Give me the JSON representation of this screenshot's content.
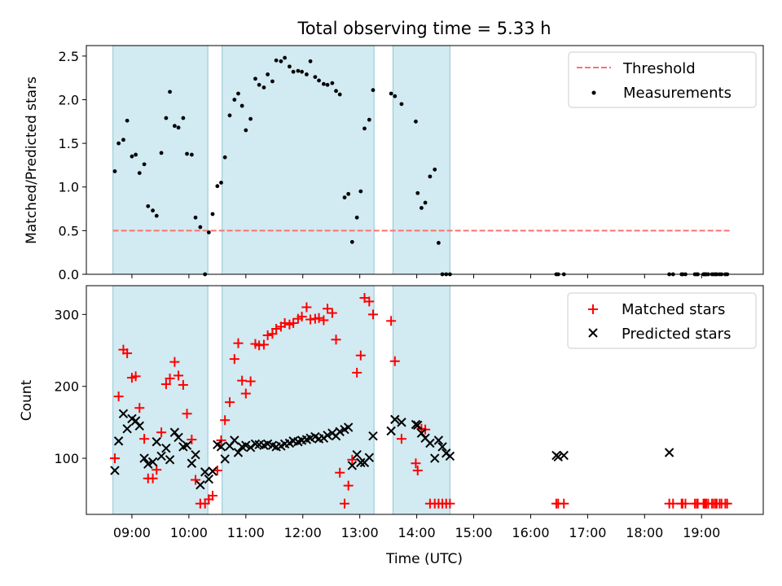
{
  "chart_data": {
    "title": "Total observing time = 5.33 h",
    "xlabel": "Time (UTC)",
    "xlim": [
      "08:12",
      "20:05"
    ],
    "x_ticks": [
      "09:00",
      "10:00",
      "11:00",
      "12:00",
      "13:00",
      "14:00",
      "15:00",
      "16:00",
      "17:00",
      "18:00",
      "19:00"
    ],
    "observing_windows": [
      [
        "08:40",
        "10:20"
      ],
      [
        "10:35",
        "13:15"
      ],
      [
        "13:35",
        "14:35"
      ]
    ],
    "window_color": "#add8e6",
    "panels": [
      {
        "type": "scatter",
        "ylabel": "Matched/Predicted stars",
        "ylim": [
          0,
          2.62
        ],
        "y_ticks": [
          "0.0",
          "0.5",
          "1.0",
          "1.5",
          "2.0",
          "2.5"
        ],
        "legend_position": "top-right",
        "series": [
          {
            "name": "Threshold",
            "kind": "hline",
            "y": 0.5,
            "x_range": [
              "08:40",
              "19:30"
            ],
            "color": "#ff7070",
            "style": "dashed"
          },
          {
            "name": "Measurements",
            "kind": "points",
            "marker": "dot",
            "color": "#000000",
            "x": [
              "08:42",
              "08:46",
              "08:51",
              "08:55",
              "09:00",
              "09:04",
              "09:08",
              "09:13",
              "09:17",
              "09:22",
              "09:26",
              "09:31",
              "09:36",
              "09:40",
              "09:45",
              "09:49",
              "09:54",
              "09:58",
              "10:03",
              "10:07",
              "10:12",
              "10:17",
              "10:21",
              "10:25",
              "10:30",
              "10:34",
              "10:38",
              "10:43",
              "10:48",
              "10:52",
              "10:56",
              "11:00",
              "11:05",
              "11:10",
              "11:14",
              "11:19",
              "11:23",
              "11:28",
              "11:32",
              "11:37",
              "11:41",
              "11:46",
              "11:50",
              "11:55",
              "11:59",
              "12:04",
              "12:08",
              "12:13",
              "12:17",
              "12:22",
              "12:26",
              "12:31",
              "12:35",
              "12:39",
              "12:44",
              "12:48",
              "12:52",
              "12:57",
              "13:01",
              "13:05",
              "13:10",
              "13:14",
              "13:33",
              "13:37",
              "13:44",
              "13:59",
              "14:01",
              "14:05",
              "14:09",
              "14:14",
              "14:19",
              "14:23",
              "14:27",
              "14:31",
              "14:35",
              "16:27",
              "16:29",
              "16:35",
              "18:26",
              "18:30",
              "18:39",
              "18:40",
              "18:43",
              "18:53",
              "18:55",
              "18:56",
              "19:02",
              "19:03",
              "19:04",
              "19:05",
              "19:07",
              "19:11",
              "19:13",
              "19:15",
              "19:16",
              "19:19",
              "19:21",
              "19:25",
              "19:27"
            ],
            "y": [
              1.18,
              1.5,
              1.54,
              1.76,
              1.35,
              1.37,
              1.16,
              1.26,
              0.78,
              0.73,
              0.67,
              1.39,
              1.79,
              2.09,
              1.7,
              1.68,
              1.79,
              1.38,
              1.37,
              0.65,
              0.54,
              0.0,
              0.48,
              0.69,
              1.01,
              1.05,
              1.34,
              1.82,
              2.0,
              2.07,
              1.93,
              1.65,
              1.78,
              2.24,
              2.17,
              2.14,
              2.29,
              2.21,
              2.45,
              2.44,
              2.48,
              2.38,
              2.32,
              2.33,
              2.32,
              2.29,
              2.44,
              2.26,
              2.22,
              2.18,
              2.17,
              2.19,
              2.1,
              2.06,
              0.88,
              0.92,
              0.37,
              0.65,
              0.95,
              1.67,
              1.77,
              2.11,
              2.07,
              2.04,
              1.95,
              1.75,
              0.93,
              0.76,
              0.82,
              1.12,
              1.2,
              0.36,
              0.0,
              0.0,
              0.0,
              0.0,
              0.0,
              0.0,
              0.0,
              0.0,
              0.0,
              0.0,
              0.0,
              0.0,
              0.0,
              0.0,
              0.0,
              0.0,
              0.0,
              0.0,
              0.0,
              0.0,
              0.0,
              0.0,
              0.0,
              0.0,
              0.0,
              0.0,
              0.0
            ]
          }
        ]
      },
      {
        "type": "scatter",
        "ylabel": "Count",
        "ylim": [
          22,
          340
        ],
        "y_ticks": [
          "100",
          "200",
          "300"
        ],
        "legend_position": "top-right",
        "series": [
          {
            "name": "Matched stars",
            "kind": "points",
            "marker": "plus",
            "color": "#ff0000",
            "x": [
              "08:42",
              "08:46",
              "08:51",
              "08:55",
              "09:00",
              "09:04",
              "09:08",
              "09:13",
              "09:17",
              "09:22",
              "09:26",
              "09:31",
              "09:36",
              "09:40",
              "09:45",
              "09:49",
              "09:54",
              "09:58",
              "10:03",
              "10:07",
              "10:12",
              "10:17",
              "10:21",
              "10:25",
              "10:30",
              "10:34",
              "10:38",
              "10:43",
              "10:48",
              "10:52",
              "10:56",
              "11:00",
              "11:05",
              "11:10",
              "11:14",
              "11:19",
              "11:23",
              "11:28",
              "11:32",
              "11:37",
              "11:41",
              "11:46",
              "11:50",
              "11:55",
              "11:59",
              "12:04",
              "12:08",
              "12:13",
              "12:17",
              "12:22",
              "12:26",
              "12:31",
              "12:35",
              "12:39",
              "12:44",
              "12:48",
              "12:52",
              "12:57",
              "13:01",
              "13:05",
              "13:10",
              "13:14",
              "13:33",
              "13:37",
              "13:44",
              "13:59",
              "14:01",
              "14:05",
              "14:09",
              "14:14",
              "14:19",
              "14:23",
              "14:27",
              "14:31",
              "14:35",
              "16:27",
              "16:29",
              "16:35",
              "18:26",
              "18:30",
              "18:39",
              "18:40",
              "18:43",
              "18:53",
              "18:55",
              "18:56",
              "19:02",
              "19:03",
              "19:04",
              "19:05",
              "19:07",
              "19:11",
              "19:13",
              "19:15",
              "19:16",
              "19:19",
              "19:21",
              "19:25",
              "19:27"
            ],
            "y": [
              100,
              186,
              251,
              246,
              212,
              214,
              170,
              127,
              72,
              72,
              84,
              136,
              203,
              211,
              234,
              215,
              202,
              162,
              126,
              70,
              37,
              37,
              43,
              48,
              83,
              125,
              153,
              178,
              238,
              260,
              208,
              190,
              207,
              259,
              257,
              258,
              271,
              273,
              280,
              283,
              288,
              286,
              288,
              294,
              297,
              310,
              293,
              294,
              295,
              292,
              308,
              302,
              265,
              80,
              37,
              62,
              98,
              219,
              243,
              323,
              318,
              300,
              291,
              235,
              127,
              93,
              83,
              141,
              140,
              37,
              37,
              37,
              37,
              37,
              37,
              37,
              37,
              37,
              37,
              37,
              37,
              37,
              37,
              37,
              37,
              37,
              37,
              37,
              37,
              37,
              37,
              37,
              37,
              37,
              37,
              37,
              37,
              37,
              37
            ]
          },
          {
            "name": "Predicted stars",
            "kind": "points",
            "marker": "x",
            "color": "#000000",
            "x": [
              "08:42",
              "08:46",
              "08:51",
              "08:55",
              "09:00",
              "09:04",
              "09:08",
              "09:13",
              "09:17",
              "09:22",
              "09:26",
              "09:31",
              "09:36",
              "09:40",
              "09:45",
              "09:49",
              "09:54",
              "09:58",
              "10:03",
              "10:07",
              "10:12",
              "10:17",
              "10:21",
              "10:25",
              "10:30",
              "10:34",
              "10:38",
              "10:43",
              "10:48",
              "10:52",
              "10:56",
              "11:00",
              "11:05",
              "11:10",
              "11:14",
              "11:19",
              "11:23",
              "11:28",
              "11:32",
              "11:37",
              "11:41",
              "11:46",
              "11:50",
              "11:55",
              "11:59",
              "12:04",
              "12:08",
              "12:13",
              "12:17",
              "12:22",
              "12:26",
              "12:31",
              "12:35",
              "12:39",
              "12:44",
              "12:48",
              "12:52",
              "12:57",
              "13:01",
              "13:05",
              "13:10",
              "13:14",
              "13:33",
              "13:37",
              "13:44",
              "13:59",
              "14:01",
              "14:05",
              "14:09",
              "14:14",
              "14:19",
              "14:23",
              "14:27",
              "14:31",
              "14:35",
              "16:27",
              "16:29",
              "16:35",
              "18:26"
            ],
            "y": [
              83,
              124,
              162,
              141,
              155,
              152,
              145,
              100,
              92,
              95,
              123,
              103,
              114,
              98,
              136,
              129,
              116,
              118,
              93,
              105,
              63,
              81,
              71,
              82,
              119,
              116,
              99,
              117,
              125,
              108,
              116,
              118,
              115,
              120,
              119,
              118,
              120,
              118,
              116,
              117,
              120,
              121,
              124,
              123,
              125,
              126,
              128,
              130,
              127,
              128,
              132,
              135,
              131,
              137,
              140,
              143,
              90,
              105,
              94,
              94,
              101,
              131,
              138,
              154,
              150,
              147,
              146,
              135,
              128,
              121,
              100,
              125,
              116,
              107,
              103,
              104,
              102,
              104,
              108
            ]
          }
        ]
      }
    ]
  }
}
